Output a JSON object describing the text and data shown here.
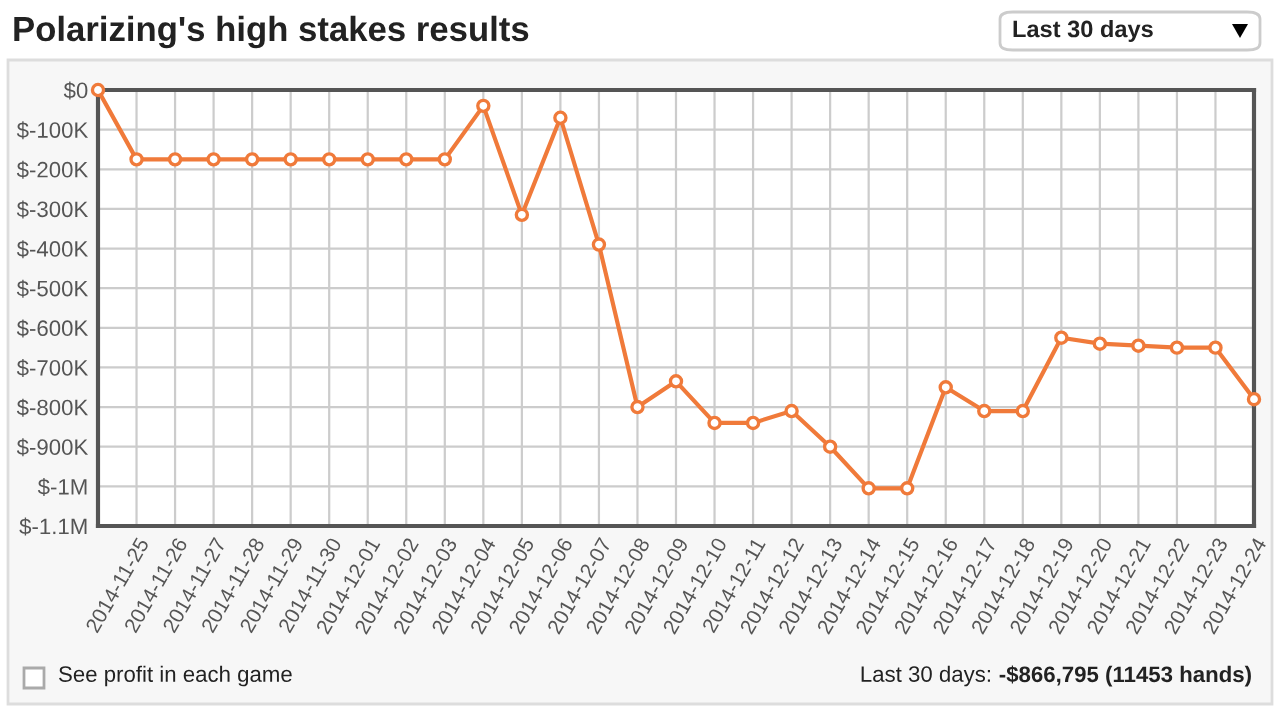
{
  "chart_data": {
    "type": "line",
    "title": "Polarizing's high stakes results",
    "categories": [
      null,
      "2014-11-25",
      "2014-11-26",
      "2014-11-27",
      "2014-11-28",
      "2014-11-29",
      "2014-11-30",
      "2014-12-01",
      "2014-12-02",
      "2014-12-03",
      "2014-12-04",
      "2014-12-05",
      "2014-12-06",
      "2014-12-07",
      "2014-12-08",
      "2014-12-09",
      "2014-12-10",
      "2014-12-11",
      "2014-12-12",
      "2014-12-13",
      "2014-12-14",
      "2014-12-15",
      "2014-12-16",
      "2014-12-17",
      "2014-12-18",
      "2014-12-19",
      "2014-12-20",
      "2014-12-21",
      "2014-12-22",
      "2014-12-23",
      "2014-12-24"
    ],
    "series": [
      {
        "color": "#f07a3a",
        "values": [
          0,
          -175000,
          -175000,
          -175000,
          -175000,
          -175000,
          -175000,
          -175000,
          -175000,
          -175000,
          -40000,
          -315000,
          -70000,
          -390000,
          -800000,
          -735000,
          -840000,
          -840000,
          -810000,
          -900000,
          -1005000,
          -1005000,
          -750000,
          -810000,
          -810000,
          -625000,
          -640000,
          -645000,
          -650000,
          -650000,
          -780000
        ]
      }
    ],
    "ylim": [
      -1100000,
      0
    ],
    "yticks": [
      {
        "value": 0,
        "label": "$0"
      },
      {
        "value": -100000,
        "label": "$-100K"
      },
      {
        "value": -200000,
        "label": "$-200K"
      },
      {
        "value": -300000,
        "label": "$-300K"
      },
      {
        "value": -400000,
        "label": "$-400K"
      },
      {
        "value": -500000,
        "label": "$-500K"
      },
      {
        "value": -600000,
        "label": "$-600K"
      },
      {
        "value": -700000,
        "label": "$-700K"
      },
      {
        "value": -800000,
        "label": "$-800K"
      },
      {
        "value": -900000,
        "label": "$-900K"
      },
      {
        "value": -1000000,
        "label": "$-1M"
      },
      {
        "value": -1100000,
        "label": "$-1.1M"
      }
    ],
    "grid": true,
    "marker": "circle",
    "line_style": "solid",
    "annotations": [
      "Last 30 days",
      "See profit in each game",
      "Last 30 days:",
      "-$866,795 (11453 hands)"
    ]
  }
}
